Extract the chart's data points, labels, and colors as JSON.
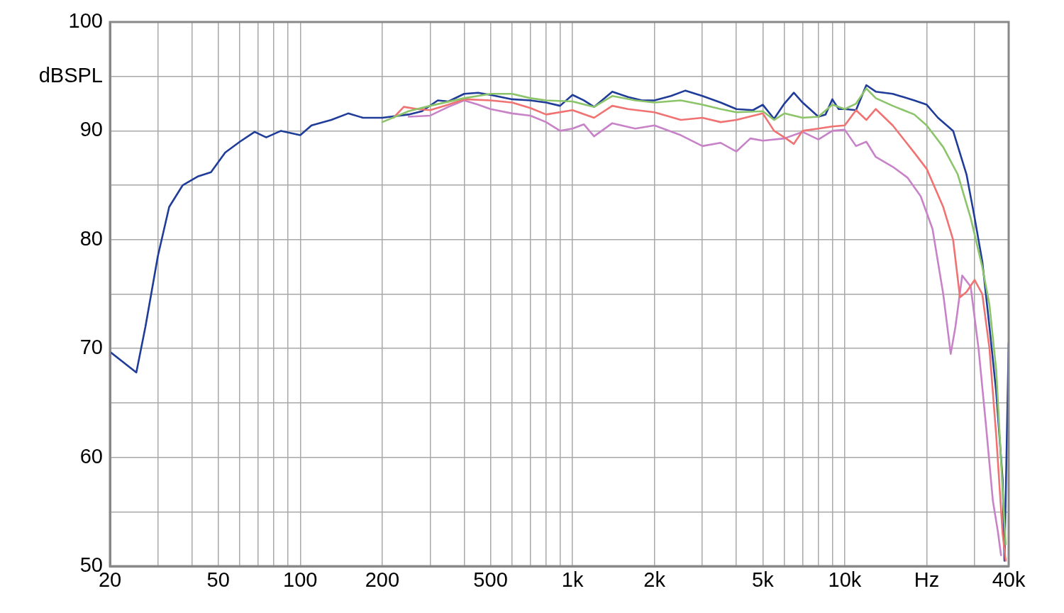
{
  "chart_data": {
    "type": "line",
    "log": "x",
    "grid": true,
    "marker": "none",
    "line_style": "solid",
    "legend": false,
    "xlim": [
      20,
      40000
    ],
    "ylim": [
      50,
      100
    ],
    "xticks": [
      20,
      {
        "value": 30,
        "label": null
      },
      {
        "value": 40,
        "label": null
      },
      50,
      {
        "value": 60,
        "label": null
      },
      {
        "value": 70,
        "label": null
      },
      {
        "value": 80,
        "label": null
      },
      {
        "value": 90,
        "label": null
      },
      100,
      200,
      {
        "value": 300,
        "label": null
      },
      {
        "value": 400,
        "label": null
      },
      500,
      {
        "value": 600,
        "label": null
      },
      {
        "value": 700,
        "label": null
      },
      {
        "value": 800,
        "label": null
      },
      {
        "value": 900,
        "label": null
      },
      {
        "value": 1000,
        "label": "1k"
      },
      {
        "value": 2000,
        "label": "2k"
      },
      {
        "value": 3000,
        "label": null
      },
      {
        "value": 4000,
        "label": null
      },
      {
        "value": 5000,
        "label": "5k"
      },
      {
        "value": 6000,
        "label": null
      },
      {
        "value": 7000,
        "label": null
      },
      {
        "value": 8000,
        "label": null
      },
      {
        "value": 9000,
        "label": null
      },
      {
        "value": 10000,
        "label": "10k"
      },
      {
        "value": 20000,
        "label": "Hz"
      },
      {
        "value": 30000,
        "label": null
      },
      {
        "value": 40000,
        "label": "40k"
      }
    ],
    "yticks": [
      50,
      {
        "value": 55,
        "label": null
      },
      60,
      {
        "value": 65,
        "label": null
      },
      70,
      {
        "value": 75,
        "label": null
      },
      80,
      {
        "value": 85,
        "label": null
      },
      90,
      {
        "value": 95,
        "label": "dBSPL"
      },
      100
    ],
    "series": [
      {
        "color": "#8cc46a",
        "x": [
          200,
          250,
          300,
          400,
          500,
          600,
          700,
          800,
          1000,
          1200,
          1400,
          1700,
          2000,
          2500,
          3000,
          3500,
          4000,
          5000,
          5500,
          6000,
          7000,
          8000,
          9000,
          10000,
          11000,
          12000,
          13000,
          15000,
          18000,
          20000,
          23000,
          26000,
          29000,
          32000,
          34000,
          36000,
          38000,
          39000
        ],
        "values": [
          90.8,
          91.8,
          92.3,
          93.0,
          93.4,
          93.4,
          93.0,
          92.8,
          92.7,
          92.2,
          93.2,
          92.8,
          92.6,
          92.8,
          92.4,
          92.0,
          91.7,
          91.8,
          91.0,
          91.6,
          91.2,
          91.3,
          92.4,
          92.0,
          92.5,
          93.9,
          93.0,
          92.3,
          91.5,
          90.5,
          88.5,
          86,
          82,
          77.5,
          74,
          68,
          57,
          52
        ]
      },
      {
        "color": "#f07272",
        "x": [
          220,
          240,
          270,
          300,
          350,
          400,
          500,
          600,
          700,
          800,
          1000,
          1200,
          1400,
          1600,
          2000,
          2500,
          3000,
          3500,
          4000,
          5000,
          5500,
          6000,
          6500,
          7000,
          8000,
          9000,
          10000,
          11000,
          12000,
          13000,
          15000,
          18000,
          20000,
          23000,
          25000,
          26500,
          28000,
          30000,
          32000,
          34000,
          36000,
          38000,
          39000
        ],
        "values": [
          91.2,
          92.2,
          92.0,
          91.9,
          92.4,
          92.9,
          92.8,
          92.6,
          92.1,
          91.5,
          91.9,
          91.2,
          92.3,
          92.0,
          91.7,
          91.0,
          91.2,
          90.8,
          91.0,
          91.6,
          90.0,
          89.4,
          88.8,
          90.0,
          90.2,
          90.4,
          90.5,
          91.9,
          91.0,
          92.0,
          90.5,
          88.0,
          86.5,
          83,
          80,
          74.7,
          75.2,
          76.3,
          75,
          70,
          62,
          53,
          50.5
        ]
      },
      {
        "color": "#c883c8",
        "x": [
          250,
          300,
          350,
          400,
          450,
          500,
          600,
          700,
          800,
          900,
          1000,
          1100,
          1200,
          1400,
          1700,
          2000,
          2500,
          3000,
          3500,
          4000,
          4500,
          5000,
          6000,
          7000,
          8000,
          9000,
          10000,
          11000,
          12000,
          13000,
          15000,
          17000,
          19000,
          21000,
          23000,
          24500,
          25500,
          27000,
          29000,
          31000,
          33000,
          35000,
          36500,
          37500
        ],
        "values": [
          91.3,
          91.4,
          92.2,
          92.8,
          92.4,
          92.0,
          91.6,
          91.4,
          90.8,
          90.0,
          90.2,
          90.6,
          89.5,
          90.7,
          90.2,
          90.5,
          89.6,
          88.6,
          88.9,
          88.1,
          89.3,
          89.1,
          89.3,
          89.9,
          89.2,
          90.0,
          90.1,
          88.6,
          89.0,
          87.6,
          86.7,
          85.7,
          84.0,
          81.0,
          75,
          69.5,
          72,
          76.7,
          75.7,
          70,
          63,
          56,
          53.2,
          51
        ]
      },
      {
        "color": "#1f3c98",
        "x": [
          20,
          25,
          27,
          30,
          33,
          37,
          42,
          47,
          53,
          60,
          68,
          75,
          85,
          100,
          110,
          130,
          150,
          170,
          200,
          250,
          280,
          320,
          350,
          400,
          450,
          500,
          600,
          700,
          800,
          900,
          1000,
          1100,
          1200,
          1400,
          1600,
          1800,
          2000,
          2300,
          2600,
          3000,
          3500,
          4000,
          4600,
          5000,
          5500,
          6000,
          6500,
          7000,
          8000,
          8500,
          9000,
          9500,
          10000,
          11000,
          12000,
          13000,
          15000,
          18000,
          20000,
          22000,
          25000,
          28000,
          30000,
          32000,
          34000,
          36000,
          38000,
          38600,
          40000
        ],
        "values": [
          69.7,
          67.8,
          72,
          78.5,
          83,
          85,
          85.8,
          86.2,
          88,
          89,
          89.9,
          89.4,
          90.0,
          89.6,
          90.5,
          91.0,
          91.6,
          91.2,
          91.2,
          91.5,
          91.8,
          92.8,
          92.7,
          93.4,
          93.5,
          93.3,
          92.9,
          92.8,
          92.6,
          92.3,
          93.3,
          92.8,
          92.2,
          93.6,
          93.1,
          92.8,
          92.8,
          93.2,
          93.7,
          93.2,
          92.6,
          92.0,
          91.9,
          92.4,
          91.1,
          92.5,
          93.5,
          92.6,
          91.3,
          91.5,
          92.9,
          92.0,
          92.0,
          91.9,
          94.2,
          93.6,
          93.4,
          92.8,
          92.4,
          91.2,
          90.0,
          86,
          82,
          78,
          72,
          66,
          58,
          50.5,
          70.5
        ]
      }
    ]
  }
}
